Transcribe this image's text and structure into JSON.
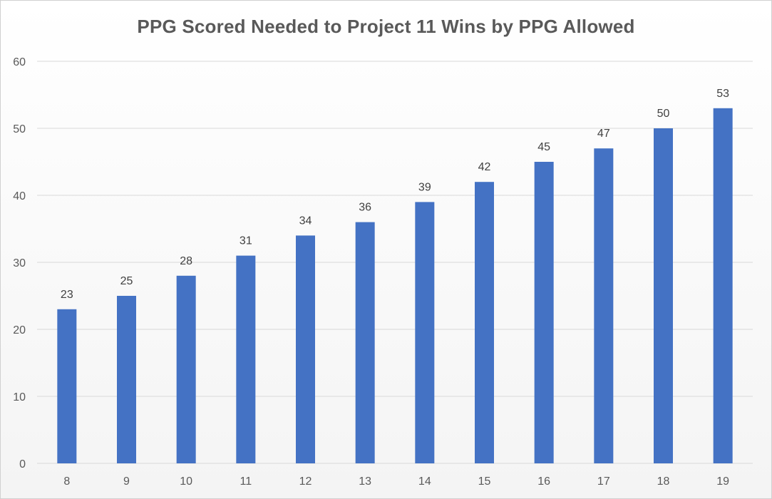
{
  "chart_data": {
    "type": "bar",
    "title": "PPG Scored Needed to Project 11 Wins by PPG Allowed",
    "xlabel": "",
    "ylabel": "",
    "categories": [
      "8",
      "9",
      "10",
      "11",
      "12",
      "13",
      "14",
      "15",
      "16",
      "17",
      "18",
      "19"
    ],
    "values": [
      23,
      25,
      28,
      31,
      34,
      36,
      39,
      42,
      45,
      47,
      50,
      53
    ],
    "ylim": [
      0,
      60
    ],
    "yticks": [
      0,
      10,
      20,
      30,
      40,
      50,
      60
    ],
    "grid": true,
    "legend": "none",
    "data_labels": true,
    "colors": {
      "bar": "#4472C4",
      "grid": "#d9d9d9",
      "text": "#595959"
    }
  }
}
